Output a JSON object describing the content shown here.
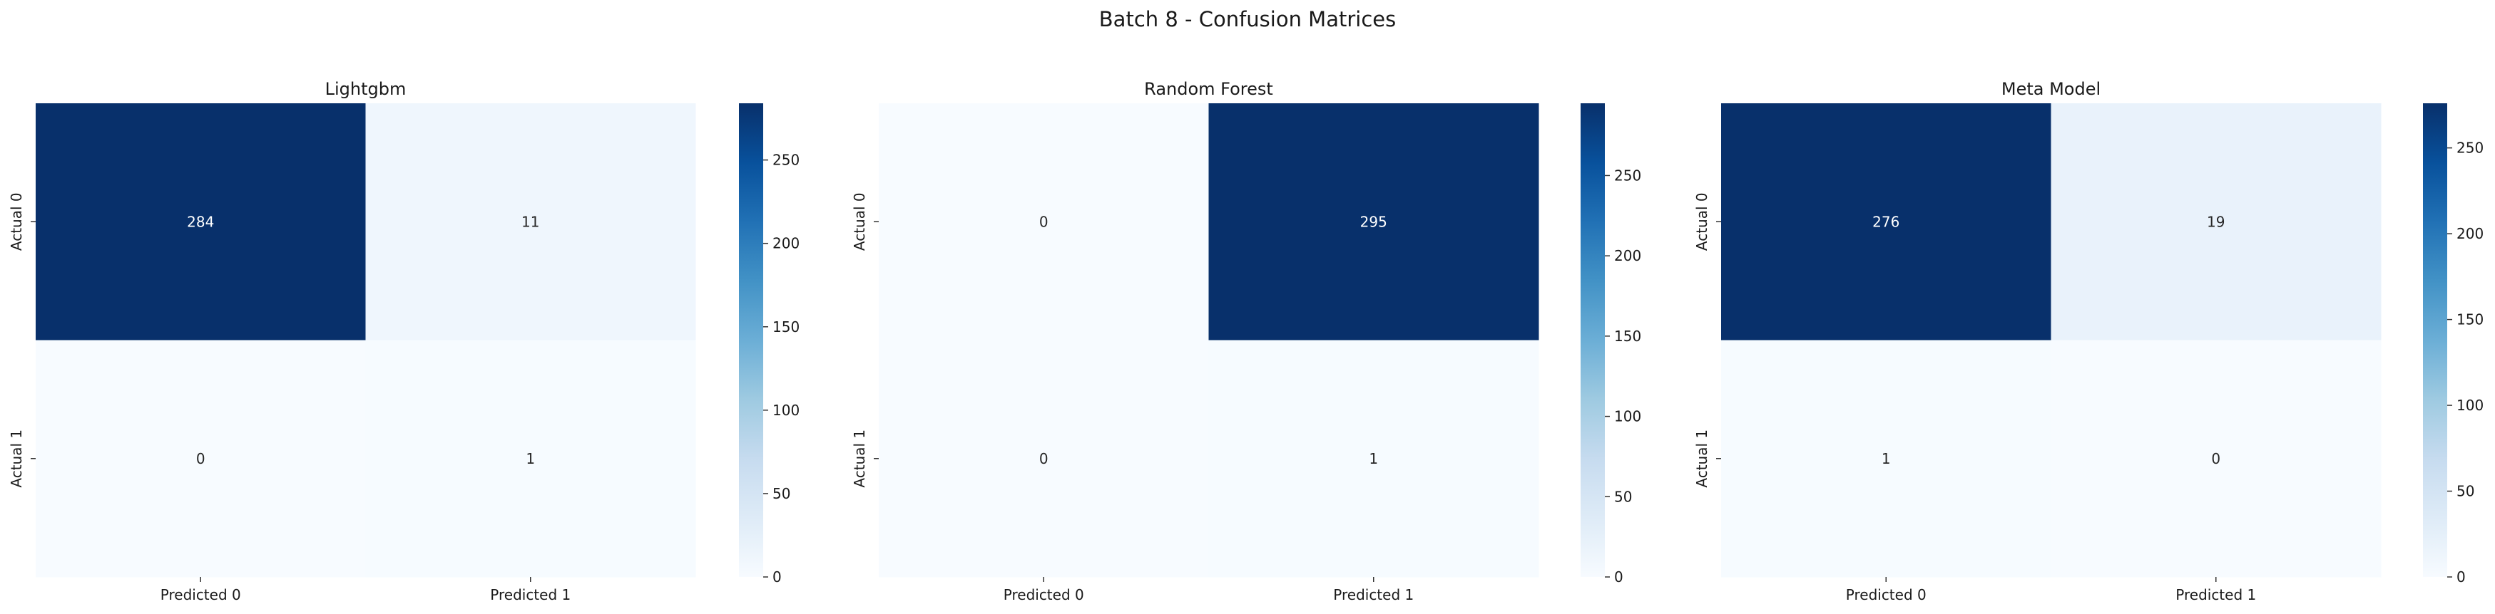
{
  "figure": {
    "title": "Batch 8 - Confusion Matrices"
  },
  "chart_data": [
    {
      "type": "heatmap",
      "title": "Lightgbm",
      "xlabel": "",
      "ylabel": "",
      "x_categories": [
        "Predicted 0",
        "Predicted 1"
      ],
      "y_categories": [
        "Actual 0",
        "Actual 1"
      ],
      "values": [
        [
          284,
          11
        ],
        [
          0,
          1
        ]
      ],
      "colorbar": {
        "range": [
          0,
          284
        ],
        "ticks": [
          0,
          50,
          100,
          150,
          200,
          250
        ]
      },
      "colormap": "Blues"
    },
    {
      "type": "heatmap",
      "title": "Random Forest",
      "xlabel": "",
      "ylabel": "",
      "x_categories": [
        "Predicted 0",
        "Predicted 1"
      ],
      "y_categories": [
        "Actual 0",
        "Actual 1"
      ],
      "values": [
        [
          0,
          295
        ],
        [
          0,
          1
        ]
      ],
      "colorbar": {
        "range": [
          0,
          295
        ],
        "ticks": [
          0,
          50,
          100,
          150,
          200,
          250
        ]
      },
      "colormap": "Blues"
    },
    {
      "type": "heatmap",
      "title": "Meta Model",
      "xlabel": "",
      "ylabel": "",
      "x_categories": [
        "Predicted 0",
        "Predicted 1"
      ],
      "y_categories": [
        "Actual 0",
        "Actual 1"
      ],
      "values": [
        [
          276,
          19
        ],
        [
          1,
          0
        ]
      ],
      "colorbar": {
        "range": [
          0,
          276
        ],
        "ticks": [
          0,
          50,
          100,
          150,
          200,
          250
        ]
      },
      "colormap": "Blues"
    }
  ]
}
